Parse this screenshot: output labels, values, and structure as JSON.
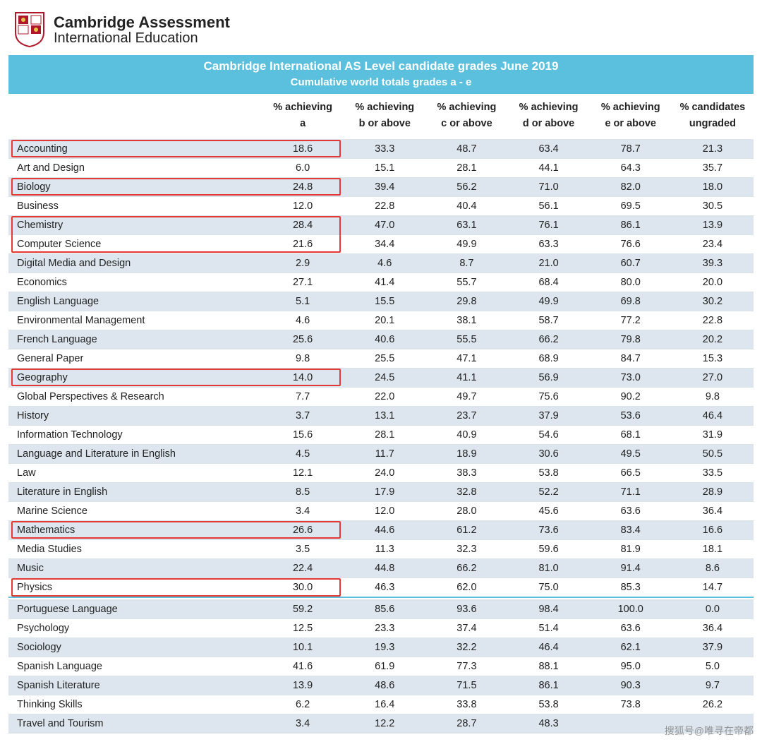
{
  "brand": {
    "line1_bold": "Cambridge Assessment",
    "line2": "International Education"
  },
  "title": {
    "t1": "Cambridge International AS Level candidate grades June 2019",
    "t2": "Cumulative world totals grades a - e"
  },
  "columns": [
    "",
    "% achieving\na",
    "% achieving\nb or above",
    "% achieving\nc or above",
    "% achieving\nd or above",
    "% achieving\ne or above",
    "% candidates\nungraded"
  ],
  "highlight_rows": [
    0,
    2,
    4,
    5,
    12,
    20,
    23
  ],
  "rows": [
    {
      "s": "Accounting",
      "v": [
        "18.6",
        "33.3",
        "48.7",
        "63.4",
        "78.7",
        "21.3"
      ]
    },
    {
      "s": "Art and Design",
      "v": [
        "6.0",
        "15.1",
        "28.1",
        "44.1",
        "64.3",
        "35.7"
      ]
    },
    {
      "s": "Biology",
      "v": [
        "24.8",
        "39.4",
        "56.2",
        "71.0",
        "82.0",
        "18.0"
      ]
    },
    {
      "s": "Business",
      "v": [
        "12.0",
        "22.8",
        "40.4",
        "56.1",
        "69.5",
        "30.5"
      ]
    },
    {
      "s": "Chemistry",
      "v": [
        "28.4",
        "47.0",
        "63.1",
        "76.1",
        "86.1",
        "13.9"
      ]
    },
    {
      "s": "Computer Science",
      "v": [
        "21.6",
        "34.4",
        "49.9",
        "63.3",
        "76.6",
        "23.4"
      ]
    },
    {
      "s": "Digital Media and Design",
      "v": [
        "2.9",
        "4.6",
        "8.7",
        "21.0",
        "60.7",
        "39.3"
      ]
    },
    {
      "s": "Economics",
      "v": [
        "27.1",
        "41.4",
        "55.7",
        "68.4",
        "80.0",
        "20.0"
      ]
    },
    {
      "s": "English Language",
      "v": [
        "5.1",
        "15.5",
        "29.8",
        "49.9",
        "69.8",
        "30.2"
      ]
    },
    {
      "s": "Environmental Management",
      "v": [
        "4.6",
        "20.1",
        "38.1",
        "58.7",
        "77.2",
        "22.8"
      ]
    },
    {
      "s": "French Language",
      "v": [
        "25.6",
        "40.6",
        "55.5",
        "66.2",
        "79.8",
        "20.2"
      ]
    },
    {
      "s": "General Paper",
      "v": [
        "9.8",
        "25.5",
        "47.1",
        "68.9",
        "84.7",
        "15.3"
      ]
    },
    {
      "s": "Geography",
      "v": [
        "14.0",
        "24.5",
        "41.1",
        "56.9",
        "73.0",
        "27.0"
      ]
    },
    {
      "s": "Global Perspectives & Research",
      "v": [
        "7.7",
        "22.0",
        "49.7",
        "75.6",
        "90.2",
        "9.8"
      ]
    },
    {
      "s": "History",
      "v": [
        "3.7",
        "13.1",
        "23.7",
        "37.9",
        "53.6",
        "46.4"
      ]
    },
    {
      "s": "Information Technology",
      "v": [
        "15.6",
        "28.1",
        "40.9",
        "54.6",
        "68.1",
        "31.9"
      ]
    },
    {
      "s": "Language and Literature in English",
      "v": [
        "4.5",
        "11.7",
        "18.9",
        "30.6",
        "49.5",
        "50.5"
      ]
    },
    {
      "s": "Law",
      "v": [
        "12.1",
        "24.0",
        "38.3",
        "53.8",
        "66.5",
        "33.5"
      ]
    },
    {
      "s": "Literature in English",
      "v": [
        "8.5",
        "17.9",
        "32.8",
        "52.2",
        "71.1",
        "28.9"
      ]
    },
    {
      "s": "Marine Science",
      "v": [
        "3.4",
        "12.0",
        "28.0",
        "45.6",
        "63.6",
        "36.4"
      ]
    },
    {
      "s": "Mathematics",
      "v": [
        "26.6",
        "44.6",
        "61.2",
        "73.6",
        "83.4",
        "16.6"
      ]
    },
    {
      "s": "Media Studies",
      "v": [
        "3.5",
        "11.3",
        "32.3",
        "59.6",
        "81.9",
        "18.1"
      ]
    },
    {
      "s": "Music",
      "v": [
        "22.4",
        "44.8",
        "66.2",
        "81.0",
        "91.4",
        "8.6"
      ]
    },
    {
      "s": "Physics",
      "v": [
        "30.0",
        "46.3",
        "62.0",
        "75.0",
        "85.3",
        "14.7"
      ]
    }
  ],
  "rows2": [
    {
      "s": "Portuguese Language",
      "v": [
        "59.2",
        "85.6",
        "93.6",
        "98.4",
        "100.0",
        "0.0"
      ]
    },
    {
      "s": "Psychology",
      "v": [
        "12.5",
        "23.3",
        "37.4",
        "51.4",
        "63.6",
        "36.4"
      ]
    },
    {
      "s": "Sociology",
      "v": [
        "10.1",
        "19.3",
        "32.2",
        "46.4",
        "62.1",
        "37.9"
      ]
    },
    {
      "s": "Spanish Language",
      "v": [
        "41.6",
        "61.9",
        "77.3",
        "88.1",
        "95.0",
        "5.0"
      ]
    },
    {
      "s": "Spanish Literature",
      "v": [
        "13.9",
        "48.6",
        "71.5",
        "86.1",
        "90.3",
        "9.7"
      ]
    },
    {
      "s": "Thinking Skills",
      "v": [
        "6.2",
        "16.4",
        "33.8",
        "53.8",
        "73.8",
        "26.2"
      ]
    },
    {
      "s": "Travel and Tourism",
      "v": [
        "3.4",
        "12.2",
        "28.7",
        "48.3",
        "",
        ""
      ]
    }
  ],
  "style": {
    "header_bg": "#5bc0de",
    "alt_row_bg": "#dde6ee",
    "highlight_border": "#e53935",
    "row_border": "#d8e2ea",
    "font_size_body": 14.5,
    "font_size_title1": 17,
    "font_size_title2": 15
  },
  "watermark": "搜狐号@唯寻在帝都"
}
